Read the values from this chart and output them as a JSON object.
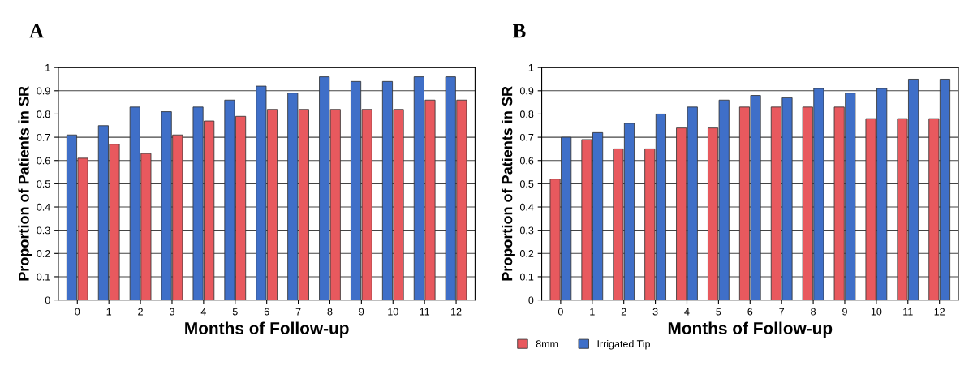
{
  "chart_data": [
    {
      "type": "bar",
      "title": "A",
      "xlabel": "Months of Follow-up",
      "ylabel": "Proportion of Patients in SR",
      "categories": [
        "0",
        "1",
        "2",
        "3",
        "4",
        "5",
        "6",
        "7",
        "8",
        "9",
        "10",
        "11",
        "12"
      ],
      "series": [
        {
          "color": "#3f6fc8",
          "values": [
            0.71,
            0.75,
            0.83,
            0.81,
            0.83,
            0.86,
            0.92,
            0.89,
            0.96,
            0.94,
            0.94,
            0.96,
            0.96
          ]
        },
        {
          "color": "#e8595e",
          "values": [
            0.61,
            0.67,
            0.63,
            0.71,
            0.77,
            0.79,
            0.82,
            0.82,
            0.82,
            0.82,
            0.82,
            0.86,
            0.86
          ]
        }
      ],
      "ylim": [
        0,
        1
      ],
      "yticks": [
        0,
        0.1,
        0.2,
        0.3,
        0.4,
        0.5,
        0.6,
        0.7,
        0.8,
        0.9,
        1
      ],
      "grid": "y"
    },
    {
      "type": "bar",
      "title": "B",
      "xlabel": "Months of Follow-up",
      "ylabel": "Proportion of Patients in SR",
      "categories": [
        "0",
        "1",
        "2",
        "3",
        "4",
        "5",
        "6",
        "7",
        "8",
        "9",
        "10",
        "11",
        "12"
      ],
      "series": [
        {
          "name": "8mm",
          "color": "#e8595e",
          "values": [
            0.52,
            0.69,
            0.65,
            0.65,
            0.74,
            0.74,
            0.83,
            0.83,
            0.83,
            0.83,
            0.78,
            0.78,
            0.78
          ]
        },
        {
          "name": "Irrigated Tip",
          "color": "#3f6fc8",
          "values": [
            0.7,
            0.72,
            0.76,
            0.8,
            0.83,
            0.86,
            0.88,
            0.87,
            0.91,
            0.89,
            0.91,
            0.95,
            0.95
          ]
        }
      ],
      "ylim": [
        0,
        1
      ],
      "yticks": [
        0,
        0.1,
        0.2,
        0.3,
        0.4,
        0.5,
        0.6,
        0.7,
        0.8,
        0.9,
        1
      ],
      "grid": "y",
      "legend": "bottom left"
    }
  ]
}
